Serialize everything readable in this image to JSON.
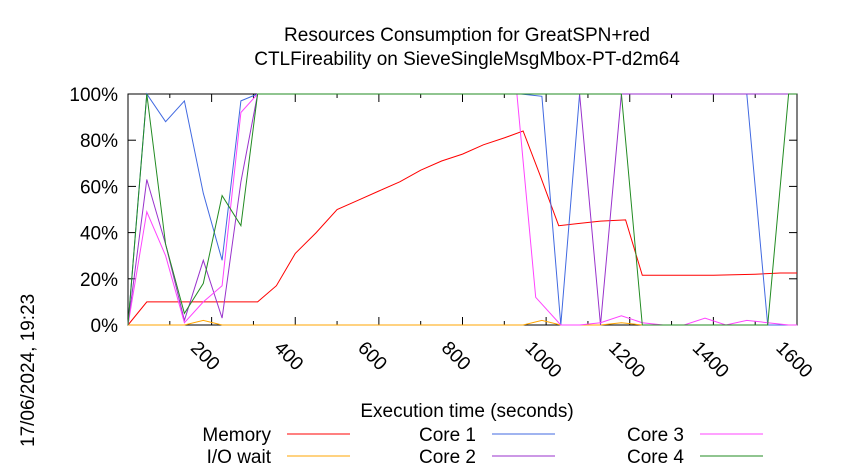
{
  "chart_data": {
    "type": "line",
    "title": "Resources Consumption for GreatSPN+red",
    "subtitle": "CTLFireability on SieveSingleMsgMbox-PT-d2m64",
    "xlabel": "Execution time (seconds)",
    "ylabel": "",
    "timestamp": "17/06/2024, 19:23",
    "xlim": [
      0,
      1600
    ],
    "ylim": [
      0,
      100
    ],
    "grid": false,
    "legend_position": "bottom",
    "x_ticks": [
      200,
      400,
      600,
      800,
      1000,
      1200,
      1400,
      1600
    ],
    "x_tick_labels": [
      "200",
      "400",
      "600",
      "800",
      "1000",
      "1200",
      "1400",
      "1600"
    ],
    "y_ticks": [
      0,
      20,
      40,
      60,
      80,
      100
    ],
    "y_tick_labels": [
      "0%",
      "20%",
      "40%",
      "60%",
      "80%",
      "100%"
    ],
    "series": [
      {
        "name": "Memory",
        "color": "#ff0000",
        "x": [
          0,
          45,
          90,
          135,
          180,
          225,
          270,
          310,
          355,
          400,
          450,
          500,
          550,
          600,
          650,
          700,
          750,
          800,
          850,
          900,
          945,
          985,
          1030,
          1080,
          1130,
          1190,
          1230,
          1300,
          1400,
          1500,
          1560,
          1600
        ],
        "y": [
          0,
          10,
          10,
          10,
          10,
          10,
          10,
          10,
          17,
          31,
          40,
          50,
          54,
          58,
          62,
          67,
          71,
          74,
          78,
          81,
          84,
          65,
          43,
          44,
          45,
          45.5,
          21.5,
          21.5,
          21.5,
          22,
          22.5,
          22.5
        ]
      },
      {
        "name": "I/O wait",
        "color": "#ffa500",
        "x": [
          0,
          45,
          90,
          135,
          180,
          225,
          270,
          310,
          355,
          400,
          900,
          945,
          990,
          1035,
          1080,
          1130,
          1180,
          1230,
          1280,
          1330,
          1380,
          1430,
          1480,
          1530,
          1580,
          1600
        ],
        "y": [
          0,
          0,
          0,
          0,
          2,
          0,
          0,
          0,
          0,
          0,
          0,
          0,
          2,
          0,
          0,
          0,
          1,
          0,
          0,
          0,
          0,
          0,
          0,
          0,
          0,
          0
        ]
      },
      {
        "name": "Core 1",
        "color": "#4169e1",
        "x": [
          0,
          45,
          90,
          135,
          180,
          225,
          270,
          310,
          355,
          940,
          990,
          1035,
          1080,
          1130,
          1180,
          1230,
          1280,
          1330,
          1380,
          1430,
          1480,
          1530,
          1580,
          1600
        ],
        "y": [
          0,
          100,
          88,
          97,
          57,
          28,
          97,
          100,
          100,
          100,
          99,
          0,
          100,
          100,
          100,
          100,
          100,
          100,
          100,
          100,
          100,
          0,
          0,
          0
        ]
      },
      {
        "name": "Core 2",
        "color": "#9932cc",
        "x": [
          0,
          45,
          90,
          135,
          180,
          225,
          270,
          310,
          355,
          940,
          990,
          1035,
          1080,
          1130,
          1180,
          1230,
          1280,
          1330,
          1380,
          1430,
          1480,
          1530,
          1580,
          1600
        ],
        "y": [
          0,
          63,
          35,
          2,
          28,
          3,
          62,
          100,
          100,
          100,
          100,
          100,
          100,
          0,
          100,
          100,
          100,
          100,
          100,
          100,
          100,
          100,
          100,
          100
        ]
      },
      {
        "name": "Core 3",
        "color": "#ff44ff",
        "x": [
          0,
          45,
          90,
          135,
          180,
          225,
          270,
          310,
          355,
          930,
          975,
          1035,
          1080,
          1130,
          1180,
          1230,
          1280,
          1330,
          1380,
          1430,
          1480,
          1530,
          1580,
          1600
        ],
        "y": [
          0,
          49,
          30,
          1,
          10,
          17,
          92,
          100,
          100,
          100,
          12,
          0,
          0,
          1,
          4,
          1,
          0,
          0,
          3,
          0,
          2,
          1,
          0,
          0
        ]
      },
      {
        "name": "Core 4",
        "color": "#228b22",
        "x": [
          0,
          45,
          90,
          135,
          180,
          225,
          270,
          310,
          355,
          940,
          990,
          1035,
          1080,
          1130,
          1180,
          1230,
          1280,
          1330,
          1380,
          1430,
          1480,
          1530,
          1580,
          1600
        ],
        "y": [
          0,
          100,
          35,
          5,
          18,
          56,
          43,
          100,
          100,
          100,
          100,
          100,
          100,
          100,
          100,
          0,
          0,
          0,
          0,
          0,
          0,
          0,
          100,
          100
        ]
      }
    ]
  }
}
